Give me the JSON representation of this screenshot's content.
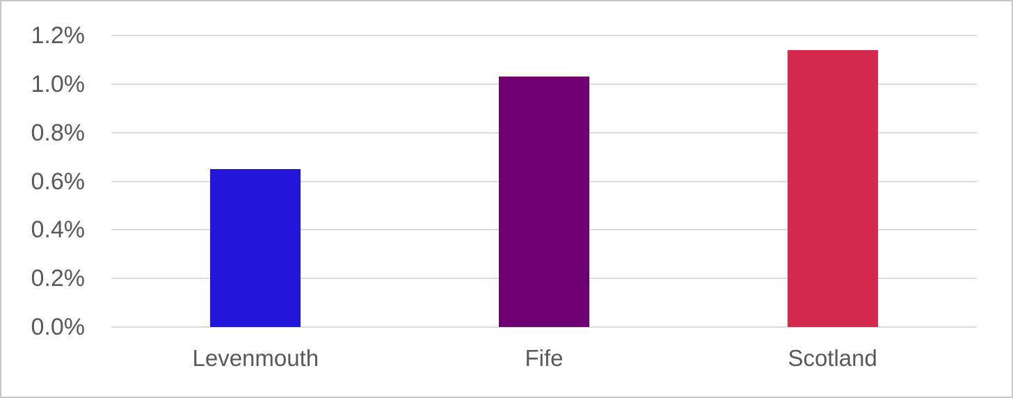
{
  "chart_data": {
    "type": "bar",
    "title": "",
    "xlabel": "",
    "ylabel": "",
    "categories": [
      "Levenmouth",
      "Fife",
      "Scotland"
    ],
    "values": [
      0.65,
      1.03,
      1.14
    ],
    "value_unit": "%",
    "ylim": [
      0,
      1.2
    ],
    "ytick_step": 0.2,
    "ytick_labels": [
      "0.0%",
      "0.2%",
      "0.4%",
      "0.6%",
      "0.8%",
      "1.0%",
      "1.2%"
    ],
    "grid": true,
    "legend": false,
    "bar_colors": [
      "#2315DA",
      "#6F006F",
      "#D5294E"
    ],
    "gridline_color": "#DBDBDB",
    "axis_text_color": "#595959",
    "background_color": "#FFFFFF",
    "border_color": "#C7C7C7"
  }
}
